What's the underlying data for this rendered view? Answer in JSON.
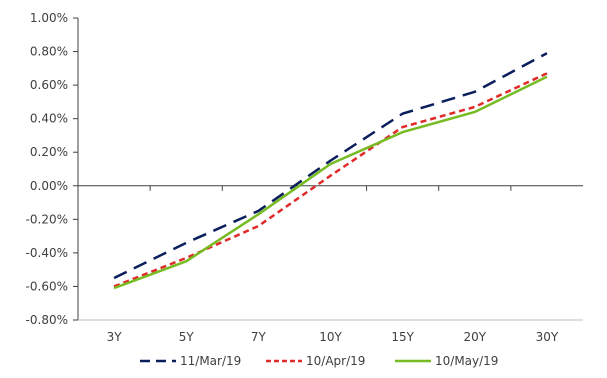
{
  "chart_data": {
    "type": "line",
    "title": "",
    "xlabel": "",
    "ylabel": "",
    "categories": [
      "3Y",
      "5Y",
      "7Y",
      "10Y",
      "15Y",
      "20Y",
      "30Y"
    ],
    "ylim": [
      -0.8,
      1.0
    ],
    "y_ticks": [
      1.0,
      0.8,
      0.6,
      0.4,
      0.2,
      0.0,
      -0.2,
      -0.4,
      -0.6,
      -0.8
    ],
    "y_tick_labels": [
      "1.00%",
      "0.80%",
      "0.60%",
      "0.40%",
      "0.20%",
      "0.00%",
      "-0.20%",
      "-0.40%",
      "-0.60%",
      "-0.80%"
    ],
    "grid": false,
    "legend_position": "bottom",
    "series": [
      {
        "name": "11/Mar/19",
        "values": [
          -0.55,
          -0.34,
          -0.15,
          0.15,
          0.43,
          0.56,
          0.79
        ],
        "color": "#0b1f5c",
        "dash": "long-dash"
      },
      {
        "name": "10/Apr/19",
        "values": [
          -0.6,
          -0.43,
          -0.24,
          0.06,
          0.35,
          0.47,
          0.67
        ],
        "color": "#e02a2a",
        "dash": "short-dash"
      },
      {
        "name": "10/May/19",
        "values": [
          -0.61,
          -0.45,
          -0.17,
          0.13,
          0.32,
          0.44,
          0.65
        ],
        "color": "#77bb22",
        "dash": "solid"
      }
    ]
  }
}
